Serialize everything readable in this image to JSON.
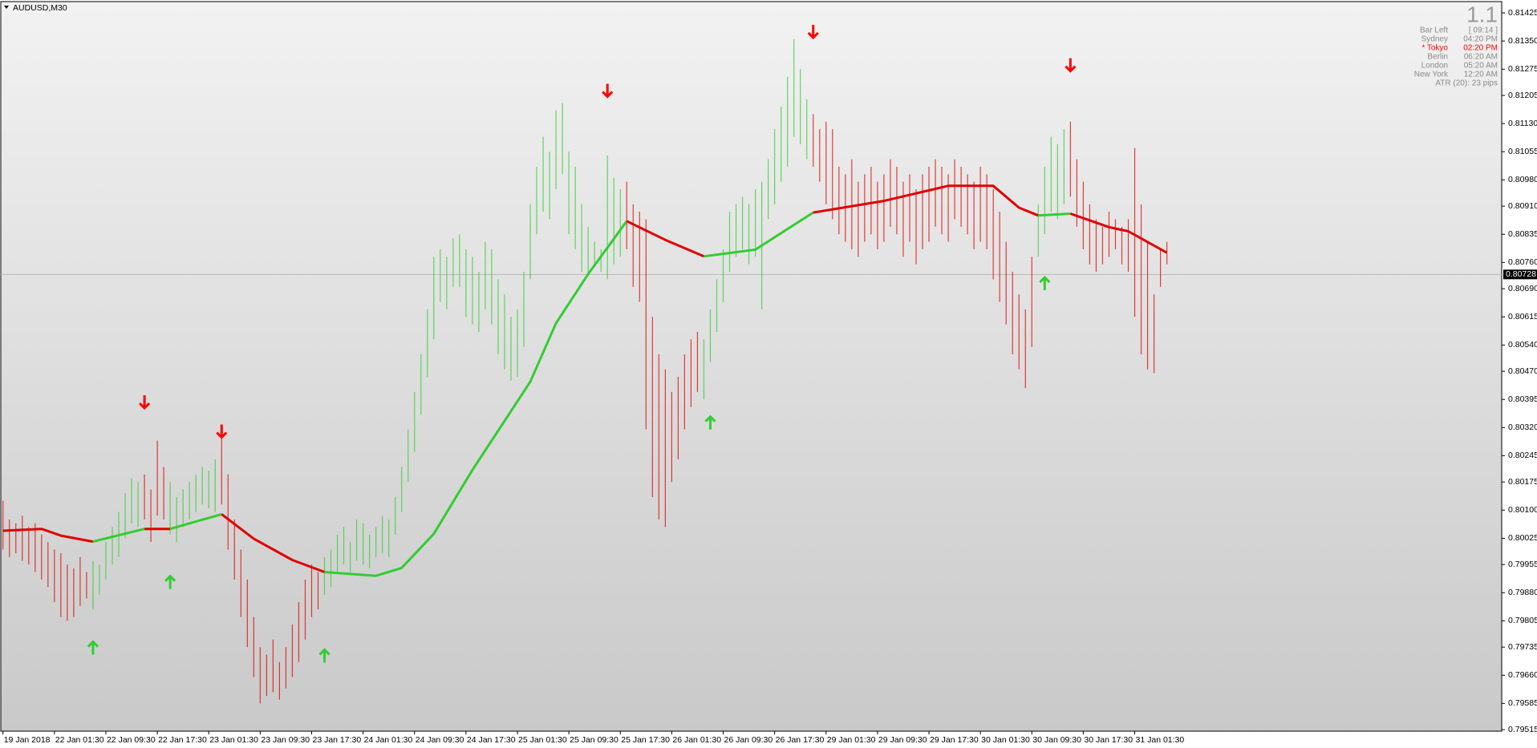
{
  "chart_data": {
    "type": "price_bars",
    "title": "AUDUSD,M30",
    "info_panel": {
      "version": "1.1",
      "rows": [
        {
          "label": "Bar Left",
          "value": "[ 09:14 ]",
          "color": "#8a8a8a"
        },
        {
          "label": "Sydney",
          "value": "04:20 PM",
          "color": "#8a8a8a"
        },
        {
          "label": "* Tokyo",
          "value": "02:20 PM",
          "color": "#ff0000"
        },
        {
          "label": "Berlin",
          "value": "06:20 AM",
          "color": "#8a8a8a"
        },
        {
          "label": "London",
          "value": "05:20 AM",
          "color": "#8a8a8a"
        },
        {
          "label": "New York",
          "value": "12:20 AM",
          "color": "#8a8a8a"
        }
      ],
      "atr": "ATR (20): 23 pips"
    },
    "highs": [
      0.80125,
      0.80075,
      0.80065,
      0.80085,
      0.80055,
      0.80065,
      0.80035,
      0.80015,
      0.79995,
      0.79985,
      0.79955,
      0.79945,
      0.79975,
      0.79935,
      0.79965,
      0.79955,
      0.80015,
      0.80055,
      0.80095,
      0.80145,
      0.80185,
      0.80175,
      0.80195,
      0.80155,
      0.80285,
      0.80215,
      0.80175,
      0.80135,
      0.80155,
      0.80175,
      0.80195,
      0.80215,
      0.80205,
      0.80235,
      0.80295,
      0.80195,
      0.80075,
      0.79995,
      0.79915,
      0.79815,
      0.79735,
      0.79715,
      0.79755,
      0.79695,
      0.79735,
      0.79795,
      0.79855,
      0.79915,
      0.79955,
      0.79935,
      0.79975,
      0.79995,
      0.80035,
      0.80055,
      0.80015,
      0.80075,
      0.80065,
      0.80035,
      0.80055,
      0.80085,
      0.80075,
      0.80135,
      0.80215,
      0.80315,
      0.80415,
      0.80515,
      0.80635,
      0.80775,
      0.80795,
      0.80775,
      0.80825,
      0.80835,
      0.80795,
      0.80775,
      0.80735,
      0.80815,
      0.80795,
      0.80715,
      0.80675,
      0.80615,
      0.80635,
      0.80735,
      0.80915,
      0.81015,
      0.81095,
      0.81055,
      0.81165,
      0.81185,
      0.81055,
      0.81015,
      0.80915,
      0.80855,
      0.80815,
      0.80795,
      0.81045,
      0.80985,
      0.80955,
      0.80975,
      0.80915,
      0.80895,
      0.80875,
      0.80615,
      0.80515,
      0.80475,
      0.80415,
      0.80455,
      0.80515,
      0.80555,
      0.80575,
      0.80555,
      0.80635,
      0.80715,
      0.80795,
      0.80895,
      0.80915,
      0.80935,
      0.80915,
      0.80955,
      0.80975,
      0.81035,
      0.81115,
      0.81175,
      0.81255,
      0.81355,
      0.81275,
      0.81195,
      0.81155,
      0.81115,
      0.81135,
      0.81115,
      0.81015,
      0.80995,
      0.81035,
      0.80975,
      0.80995,
      0.81015,
      0.80975,
      0.80995,
      0.81035,
      0.81015,
      0.80975,
      0.80995,
      0.80955,
      0.80995,
      0.81015,
      0.81035,
      0.81015,
      0.80995,
      0.81035,
      0.81015,
      0.80995,
      0.80975,
      0.81015,
      0.80995,
      0.80955,
      0.80895,
      0.80815,
      0.80735,
      0.80675,
      0.80635,
      0.80775,
      0.80915,
      0.81015,
      0.81095,
      0.81075,
      0.81115,
      0.81135,
      0.81035,
      0.80975,
      0.80915,
      0.80875,
      0.80855,
      0.80895,
      0.80875,
      0.80855,
      0.80875,
      0.81065,
      0.80915,
      0.80815,
      0.80675,
      0.80795,
      0.80815
    ],
    "lows": [
      0.79995,
      0.79975,
      0.79985,
      0.79965,
      0.79955,
      0.79935,
      0.79915,
      0.79895,
      0.79855,
      0.79815,
      0.79805,
      0.79815,
      0.79845,
      0.79865,
      0.79835,
      0.79875,
      0.79915,
      0.79955,
      0.79975,
      0.80025,
      0.80065,
      0.80055,
      0.80075,
      0.80015,
      0.80085,
      0.80075,
      0.80035,
      0.80015,
      0.80055,
      0.80075,
      0.80095,
      0.80115,
      0.80105,
      0.80095,
      0.80115,
      0.79995,
      0.79915,
      0.79815,
      0.79735,
      0.79655,
      0.79585,
      0.79605,
      0.79615,
      0.79595,
      0.79625,
      0.79655,
      0.79695,
      0.79755,
      0.79815,
      0.79835,
      0.79875,
      0.79895,
      0.79935,
      0.79955,
      0.79935,
      0.79965,
      0.79955,
      0.79945,
      0.79975,
      0.79985,
      0.79975,
      0.80035,
      0.80095,
      0.80175,
      0.80255,
      0.80355,
      0.80455,
      0.80555,
      0.80655,
      0.80635,
      0.80695,
      0.80695,
      0.80615,
      0.80595,
      0.80575,
      0.80635,
      0.80595,
      0.80515,
      0.80475,
      0.80445,
      0.80455,
      0.80535,
      0.80715,
      0.80835,
      0.80895,
      0.80875,
      0.80955,
      0.80995,
      0.80835,
      0.80795,
      0.80735,
      0.80725,
      0.80755,
      0.80735,
      0.80715,
      0.80755,
      0.80775,
      0.80795,
      0.80695,
      0.80655,
      0.80315,
      0.80135,
      0.80075,
      0.80055,
      0.80175,
      0.80235,
      0.80315,
      0.80375,
      0.80415,
      0.80395,
      0.80495,
      0.80575,
      0.80655,
      0.80735,
      0.80775,
      0.80795,
      0.80755,
      0.80775,
      0.80635,
      0.80875,
      0.80915,
      0.80975,
      0.81015,
      0.81095,
      0.81075,
      0.81035,
      0.81015,
      0.80975,
      0.80915,
      0.80875,
      0.80835,
      0.80815,
      0.80795,
      0.80775,
      0.80815,
      0.80835,
      0.80795,
      0.80815,
      0.80855,
      0.80835,
      0.80775,
      0.80815,
      0.80755,
      0.80795,
      0.80815,
      0.80855,
      0.80835,
      0.80815,
      0.80875,
      0.80855,
      0.80835,
      0.80795,
      0.80815,
      0.80795,
      0.80715,
      0.80655,
      0.80595,
      0.80515,
      0.80475,
      0.80425,
      0.80535,
      0.80775,
      0.80835,
      0.80895,
      0.80875,
      0.80915,
      0.80935,
      0.80855,
      0.80795,
      0.80755,
      0.80735,
      0.80755,
      0.80775,
      0.80795,
      0.80755,
      0.80735,
      0.80615,
      0.80515,
      0.80475,
      0.80465,
      0.80695,
      0.80755
    ],
    "ma_segments": [
      {
        "color": "#e00000",
        "x": [
          0,
          6,
          9,
          14
        ],
        "values": [
          0.80045,
          0.8005,
          0.80032,
          0.80016
        ]
      },
      {
        "color": "#33cc33",
        "x": [
          14,
          22
        ],
        "values": [
          0.80016,
          0.8005
        ]
      },
      {
        "color": "#e00000",
        "x": [
          22,
          26
        ],
        "values": [
          0.8005,
          0.8005
        ]
      },
      {
        "color": "#33cc33",
        "x": [
          26,
          34
        ],
        "values": [
          0.8005,
          0.80089
        ]
      },
      {
        "color": "#e00000",
        "x": [
          34,
          39,
          45,
          50
        ],
        "values": [
          0.80089,
          0.80024,
          0.79967,
          0.79935
        ]
      },
      {
        "color": "#33cc33",
        "x": [
          50,
          58,
          62,
          67,
          73,
          82,
          86,
          91,
          97
        ],
        "values": [
          0.79935,
          0.79925,
          0.79946,
          0.80037,
          0.80207,
          0.80442,
          0.80598,
          0.80729,
          0.8087
        ]
      },
      {
        "color": "#e00000",
        "x": [
          97,
          103,
          109
        ],
        "values": [
          0.8087,
          0.8082,
          0.80776
        ]
      },
      {
        "color": "#33cc33",
        "x": [
          109,
          117,
          126
        ],
        "values": [
          0.80776,
          0.80794,
          0.80893
        ]
      },
      {
        "color": "#e00000",
        "x": [
          126,
          137,
          147,
          154,
          158,
          161
        ],
        "values": [
          0.80893,
          0.80924,
          0.80964,
          0.80964,
          0.80906,
          0.80885
        ]
      },
      {
        "color": "#33cc33",
        "x": [
          161,
          166
        ],
        "values": [
          0.80885,
          0.8089
        ]
      },
      {
        "color": "#e00000",
        "x": [
          166,
          172,
          175,
          181
        ],
        "values": [
          0.8089,
          0.80854,
          0.80843,
          0.80786
        ]
      }
    ],
    "sell_signals": {
      "color": "#ff0000",
      "x": [
        22,
        34,
        94,
        126,
        166
      ],
      "values": [
        0.80389,
        0.80311,
        0.81219,
        0.81376,
        0.81287
      ]
    },
    "buy_signals": {
      "color": "#33cc33",
      "x": [
        14,
        26,
        50,
        110,
        162
      ],
      "values": [
        0.79732,
        0.79907,
        0.79711,
        0.80332,
        0.80703
      ]
    },
    "current_price": 0.80728,
    "xlim": [
      -0.34,
      233.07
    ],
    "xticks": [
      {
        "value": 0,
        "label": "19 Jan 2018"
      },
      {
        "value": 8,
        "label": "22 Jan 01:30"
      },
      {
        "value": 16,
        "label": "22 Jan 09:30"
      },
      {
        "value": 24,
        "label": "22 Jan 17:30"
      },
      {
        "value": 32,
        "label": "23 Jan 01:30"
      },
      {
        "value": 40,
        "label": "23 Jan 09:30"
      },
      {
        "value": 48,
        "label": "23 Jan 17:30"
      },
      {
        "value": 56,
        "label": "24 Jan 01:30"
      },
      {
        "value": 64,
        "label": "24 Jan 09:30"
      },
      {
        "value": 72,
        "label": "24 Jan 17:30"
      },
      {
        "value": 80,
        "label": "25 Jan 01:30"
      },
      {
        "value": 88,
        "label": "25 Jan 09:30"
      },
      {
        "value": 96,
        "label": "25 Jan 17:30"
      },
      {
        "value": 104,
        "label": "26 Jan 01:30"
      },
      {
        "value": 112,
        "label": "26 Jan 09:30"
      },
      {
        "value": 120,
        "label": "26 Jan 17:30"
      },
      {
        "value": 128,
        "label": "29 Jan 01:30"
      },
      {
        "value": 136,
        "label": "29 Jan 09:30"
      },
      {
        "value": 144,
        "label": "29 Jan 17:30"
      },
      {
        "value": 152,
        "label": "30 Jan 01:30"
      },
      {
        "value": 160,
        "label": "30 Jan 09:30"
      },
      {
        "value": 168,
        "label": "30 Jan 17:30"
      },
      {
        "value": 176,
        "label": "31 Jan 01:30"
      }
    ],
    "ylim": [
      0.79511,
      0.81455
    ],
    "yticks": [
      0.81425,
      {
        "value": 0.8135,
        "label": "0.81350"
      },
      0.81275,
      0.81205,
      {
        "value": 0.8113,
        "label": "0.81130"
      },
      0.81055,
      {
        "value": 0.8098,
        "label": "0.80980"
      },
      {
        "value": 0.8091,
        "label": "0.80910"
      },
      0.80835,
      {
        "value": 0.8076,
        "label": "0.80760"
      },
      {
        "value": 0.8069,
        "label": "0.80690"
      },
      0.80615,
      {
        "value": 0.8054,
        "label": "0.80540"
      },
      {
        "value": 0.8047,
        "label": "0.80470"
      },
      0.80395,
      {
        "value": 0.8032,
        "label": "0.80320"
      },
      0.80245,
      0.80175,
      {
        "value": 0.801,
        "label": "0.80100"
      },
      0.80025,
      0.79955,
      {
        "value": 0.7988,
        "label": "0.79880"
      },
      0.79805,
      0.79735,
      {
        "value": 0.7966,
        "label": "0.79660"
      },
      0.79585,
      0.79515
    ],
    "grid": false
  }
}
